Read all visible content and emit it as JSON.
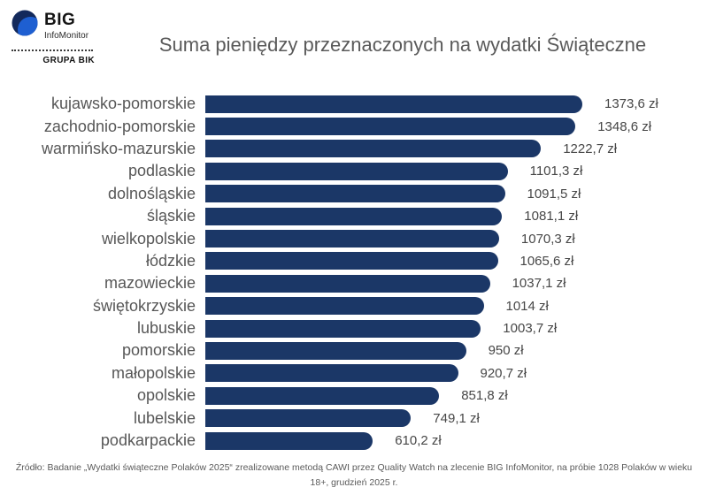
{
  "logo": {
    "name": "BIG",
    "subname": "InfoMonitor",
    "group": "GRUPA BIK",
    "color_dark": "#13295b",
    "color_light": "#1e5fd1"
  },
  "title": "Suma pieniędzy przeznaczonych na wydatki Świąteczne",
  "chart_data": {
    "type": "bar",
    "orientation": "horizontal",
    "title": "Suma pieniędzy przeznaczonych na wydatki Świąteczne",
    "categories": [
      "kujawsko-pomorskie",
      "zachodnio-pomorskie",
      "warmińsko-mazurskie",
      "podlaskie",
      "dolnośląskie",
      "śląskie",
      "wielkopolskie",
      "łódzkie",
      "mazowieckie",
      "świętokrzyskie",
      "lubuskie",
      "pomorskie",
      "małopolskie",
      "opolskie",
      "lubelskie",
      "podkarpackie"
    ],
    "values": [
      1373.6,
      1348.6,
      1222.7,
      1101.3,
      1091.5,
      1081.1,
      1070.3,
      1065.6,
      1037.1,
      1014,
      1003.7,
      950,
      920.7,
      851.8,
      749.1,
      610.2
    ],
    "value_labels": [
      "1373,6 zł",
      "1348,6 zł",
      "1222,7 zł",
      "1101,3 zł",
      "1091,5 zł",
      "1081,1 zł",
      "1070,3 zł",
      "1065,6 zł",
      "1037,1 zł",
      "1014 zł",
      "1003,7 zł",
      "950 zł",
      "920,7 zł",
      "851,8 zł",
      "749,1 zł",
      "610,2 zł"
    ],
    "unit": "zł",
    "bar_color": "#1b3767",
    "label_color": "#575757",
    "value_color": "#474747",
    "xlim": [
      0,
      1400
    ],
    "grid": false,
    "legend": false
  },
  "footer": "Źródło: Badanie „Wydatki świąteczne Polaków 2025“ zrealizowane metodą CAWI przez Quality Watch na zlecenie BIG InfoMonitor, na próbie 1028 Polaków w wieku 18+, grudzień 2025 r."
}
